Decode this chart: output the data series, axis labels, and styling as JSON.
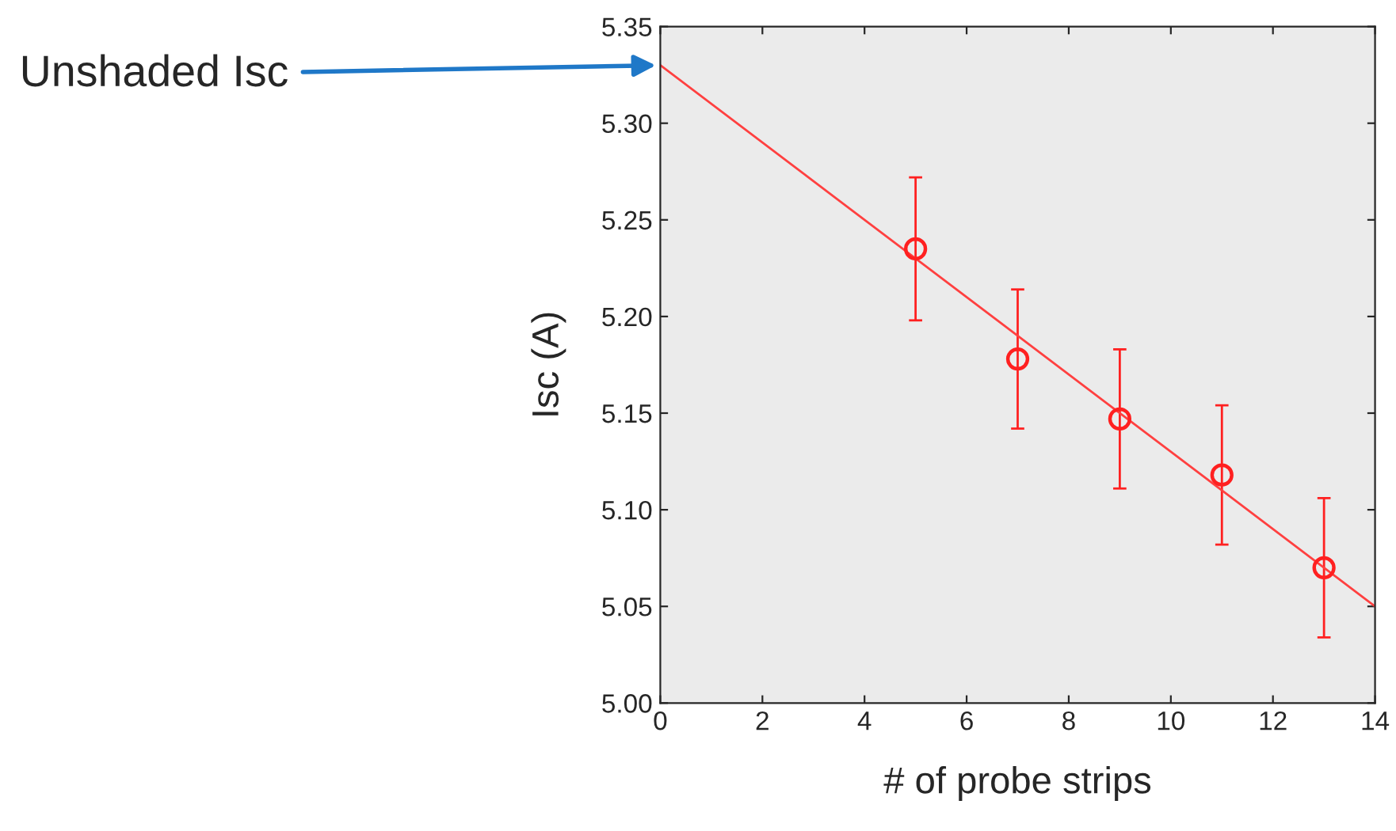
{
  "chart_data": {
    "type": "scatter",
    "xlabel": "# of probe strips",
    "ylabel": "Isc (A)",
    "xlim": [
      0,
      14
    ],
    "xticks": [
      0,
      2,
      4,
      6,
      8,
      10,
      12,
      14
    ],
    "ylim": [
      5.0,
      5.35
    ],
    "yticks": [
      {
        "value": 5.0,
        "label": "5.00"
      },
      {
        "value": 5.05,
        "label": "5.05"
      },
      {
        "value": 5.1,
        "label": "5.10"
      },
      {
        "value": 5.15,
        "label": "5.15"
      },
      {
        "value": 5.2,
        "label": "5.20"
      },
      {
        "value": 5.25,
        "label": "5.25"
      },
      {
        "value": 5.3,
        "label": "5.30"
      },
      {
        "value": 5.35,
        "label": "5.35"
      }
    ],
    "grid": false,
    "legend": false,
    "series": [
      {
        "color": "#ff2020",
        "marker": "circle",
        "x": [
          5,
          7,
          9,
          11,
          13
        ],
        "values": [
          5.235,
          5.178,
          5.147,
          5.118,
          5.07
        ],
        "errors": [
          0.037,
          0.036,
          0.036,
          0.036,
          0.036
        ]
      },
      {
        "type": "line",
        "color": "#ff4040",
        "marker": "none",
        "line_style": "solid",
        "x": [
          0,
          14
        ],
        "values": [
          5.33,
          5.05
        ]
      }
    ],
    "annotations": [
      {
        "text": "Unshaded Isc",
        "x": 0,
        "y": 5.33
      }
    ]
  }
}
